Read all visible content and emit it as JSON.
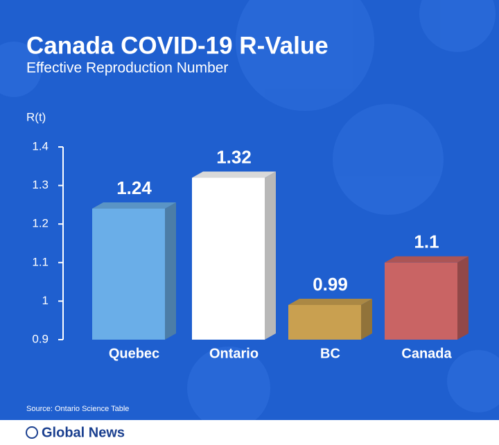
{
  "chart_data": {
    "type": "bar",
    "title": "Canada COVID-19 R-Value",
    "subtitle": "Effective Reproduction Number",
    "y_label": "R(t)",
    "categories": [
      "Quebec",
      "Ontario",
      "BC",
      "Canada"
    ],
    "values": [
      1.24,
      1.32,
      0.99,
      1.1
    ],
    "colors": [
      "#6aaee8",
      "#ffffff",
      "#c9a050",
      "#c96464"
    ],
    "ylim": [
      0.9,
      1.4
    ],
    "yticks": [
      0.9,
      1,
      1.1,
      1.2,
      1.3,
      1.4
    ],
    "source": "Source: Ontario Science Table",
    "brand": "Global News"
  }
}
